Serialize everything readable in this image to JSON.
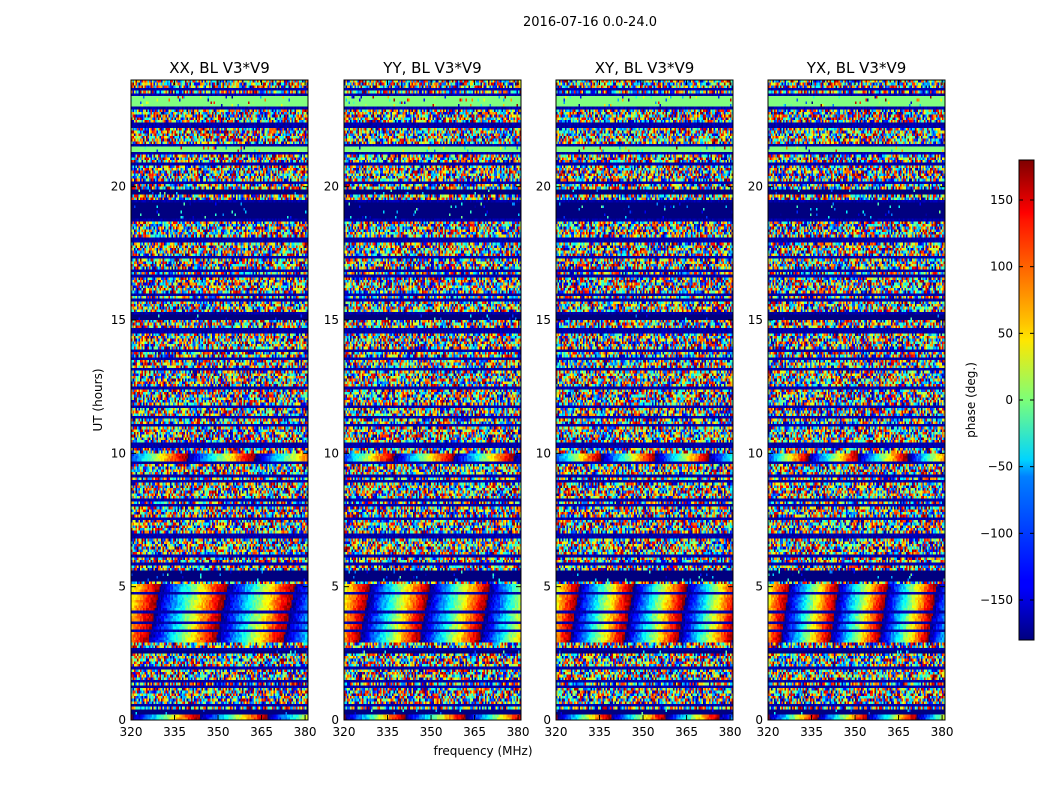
{
  "figure": {
    "suptitle": "2016-07-16 0.0-24.0"
  },
  "chart_data": {
    "type": "heatmap",
    "title": "2016-07-16 0.0-24.0",
    "xlabel": "frequency (MHz)",
    "ylabel": "UT (hours)",
    "xlim": [
      320,
      381
    ],
    "ylim": [
      0,
      24
    ],
    "x_ticks": [
      "320",
      "335",
      "350",
      "365",
      "380"
    ],
    "x_tick_values": [
      320,
      335,
      350,
      365,
      380
    ],
    "y_ticks": [
      "0",
      "5",
      "10",
      "15",
      "20"
    ],
    "y_tick_values": [
      0,
      5,
      10,
      15,
      20
    ],
    "panels": [
      {
        "title": "XX, BL V3*V9"
      },
      {
        "title": "YY, BL V3*V9"
      },
      {
        "title": "XY, BL V3*V9"
      },
      {
        "title": "YX, BL V3*V9"
      }
    ],
    "colorbar": {
      "label": "phase (deg.)",
      "range": [
        -180,
        180
      ],
      "colormap": "jet",
      "ticks": [
        "150",
        "100",
        "50",
        "0",
        "−50",
        "−100",
        "−150"
      ],
      "tick_values": [
        150,
        100,
        50,
        0,
        -50,
        -100,
        -150
      ]
    },
    "solid_bands": [
      {
        "from": 23.0,
        "to": 23.4,
        "phase": 0
      },
      {
        "from": 21.3,
        "to": 21.5,
        "phase": 0
      },
      {
        "from": 18.85,
        "to": 19.35,
        "phase": -180
      },
      {
        "from": 19.7,
        "to": 19.85,
        "phase": -180
      },
      {
        "from": 15.0,
        "to": 15.2,
        "phase": -180
      },
      {
        "from": 5.25,
        "to": 5.6,
        "phase": -180
      },
      {
        "from": 2.45,
        "to": 2.65,
        "phase": -180
      },
      {
        "from": 0.25,
        "to": 0.45,
        "phase": -180
      }
    ]
  },
  "colors": {
    "jet_low": "#00007f",
    "jet_high": "#7f0000"
  }
}
